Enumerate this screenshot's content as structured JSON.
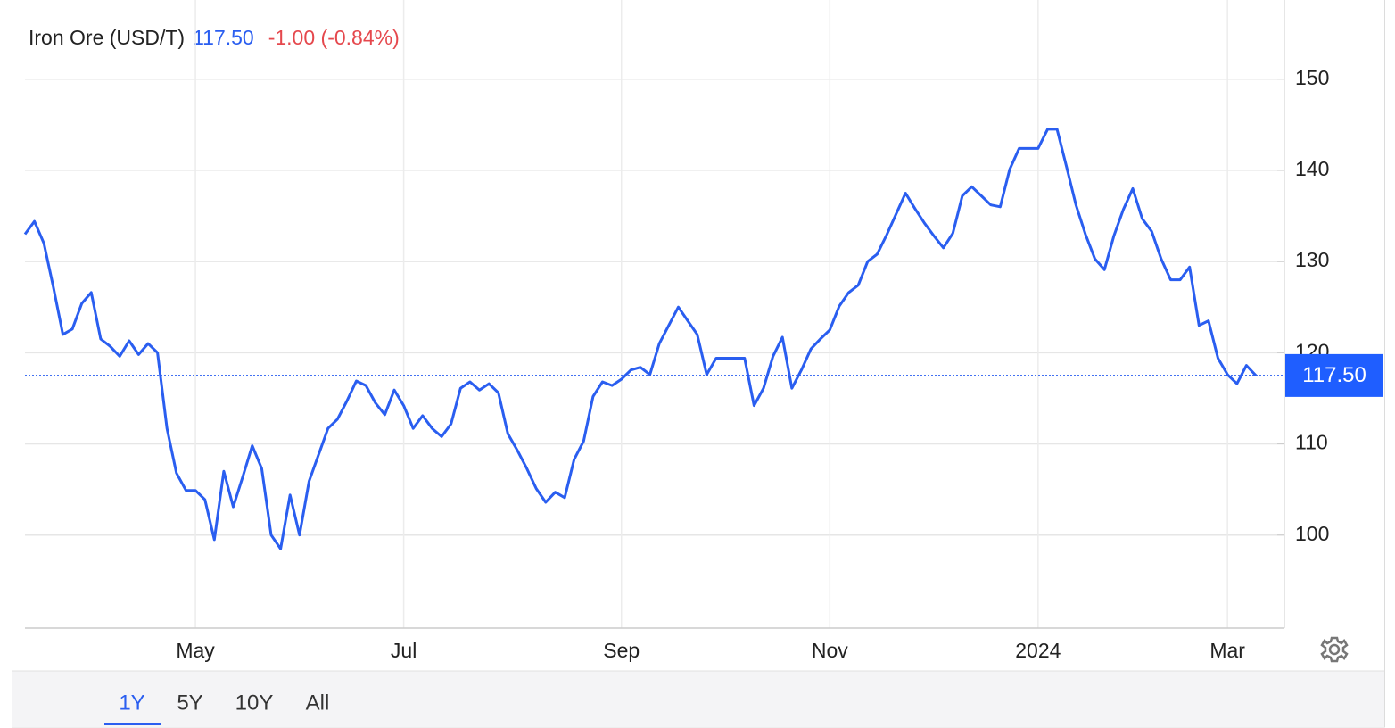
{
  "chart_data": {
    "type": "line",
    "title": "Iron Ore (USD/T)",
    "current": {
      "value": 117.5,
      "label": "117.50"
    },
    "change": "-1.00 (-0.84%)",
    "categories": [
      null,
      null,
      null,
      null,
      null,
      null,
      null,
      null,
      null,
      null,
      null,
      null,
      null,
      null,
      null,
      null,
      null,
      null,
      "May",
      null,
      null,
      null,
      null,
      null,
      null,
      null,
      null,
      null,
      null,
      null,
      null,
      null,
      null,
      null,
      null,
      null,
      null,
      null,
      null,
      null,
      "Jul",
      null,
      null,
      null,
      null,
      null,
      null,
      null,
      null,
      null,
      null,
      null,
      null,
      null,
      null,
      null,
      null,
      null,
      null,
      null,
      null,
      null,
      null,
      "Sep",
      null,
      null,
      null,
      null,
      null,
      null,
      null,
      null,
      null,
      null,
      null,
      null,
      null,
      null,
      null,
      null,
      null,
      null,
      null,
      null,
      null,
      "Nov",
      null,
      null,
      null,
      null,
      null,
      null,
      null,
      null,
      null,
      null,
      null,
      null,
      null,
      null,
      null,
      null,
      null,
      null,
      null,
      null,
      null,
      "2024",
      null,
      null,
      null,
      null,
      null,
      null,
      null,
      null,
      null,
      null,
      null,
      null,
      null,
      null,
      null,
      null,
      null,
      null,
      null,
      "Mar",
      null,
      null,
      null
    ],
    "series": [
      {
        "name": "Iron Ore",
        "color": "#2a5ef0",
        "values": [
          133.0,
          134.4,
          132.0,
          127.2,
          122.0,
          122.6,
          125.4,
          126.6,
          121.5,
          120.7,
          119.6,
          121.3,
          119.8,
          121.0,
          120.0,
          111.7,
          106.8,
          104.9,
          104.9,
          103.9,
          99.5,
          107.0,
          103.1,
          106.4,
          109.8,
          107.3,
          100.0,
          98.5,
          104.4,
          100.0,
          105.9,
          108.8,
          111.7,
          112.7,
          114.7,
          116.9,
          116.4,
          114.5,
          113.2,
          115.9,
          114.2,
          111.7,
          113.1,
          111.7,
          110.8,
          112.2,
          116.1,
          116.8,
          115.9,
          116.6,
          115.6,
          111.1,
          109.3,
          107.3,
          105.1,
          103.6,
          104.7,
          104.1,
          108.3,
          110.3,
          115.2,
          116.8,
          116.4,
          117.1,
          118.1,
          118.4,
          117.6,
          121.0,
          123.0,
          125.0,
          123.5,
          122.0,
          117.6,
          119.4,
          119.4,
          119.4,
          119.4,
          114.2,
          116.1,
          119.6,
          121.7,
          116.1,
          118.1,
          120.4,
          121.5,
          122.5,
          125.1,
          126.6,
          127.4,
          130.0,
          130.8,
          132.9,
          135.2,
          137.5,
          135.8,
          134.2,
          132.8,
          131.5,
          133.1,
          137.2,
          138.2,
          137.2,
          136.2,
          136.0,
          140.1,
          142.4,
          142.4,
          142.4,
          144.5,
          144.5,
          140.4,
          136.2,
          133.0,
          130.3,
          129.1,
          132.8,
          135.7,
          138.0,
          134.7,
          133.3,
          130.3,
          128.0,
          128.0,
          129.4,
          123.0,
          123.5,
          119.4,
          117.6,
          116.6,
          118.6,
          117.5
        ]
      }
    ],
    "ylim": [
      89.8,
      157.7
    ],
    "yticks": [
      100,
      110,
      120,
      130,
      140,
      150
    ],
    "grid": true
  },
  "controls": {
    "ranges": [
      "1Y",
      "5Y",
      "10Y",
      "All"
    ]
  }
}
